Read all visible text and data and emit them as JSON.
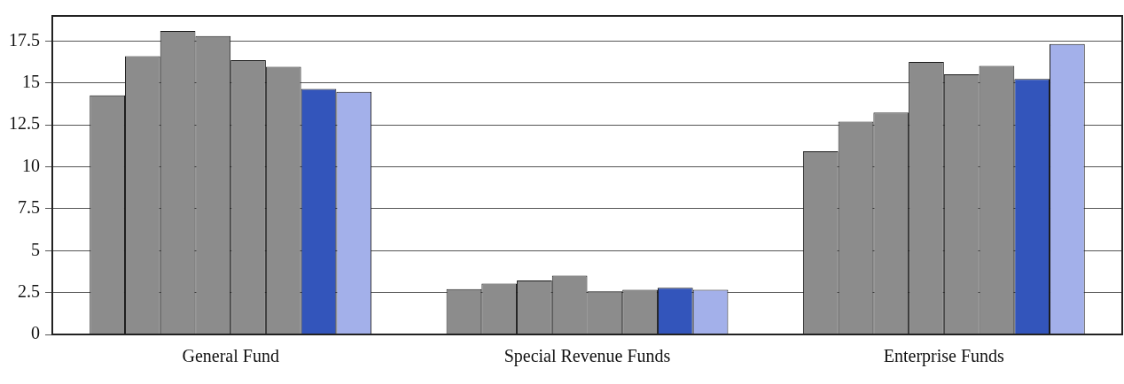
{
  "chart_data": {
    "type": "bar",
    "categories": [
      "General Fund",
      "Special Revenue Funds",
      "Enterprise Funds"
    ],
    "series": [
      {
        "color": "#8c8c8c",
        "values": [
          14.26,
          2.71,
          10.92
        ]
      },
      {
        "color": "#8c8c8c",
        "values": [
          16.6,
          3.03,
          12.69
        ]
      },
      {
        "color": "#8c8c8c",
        "values": [
          18.1,
          3.22,
          13.24
        ]
      },
      {
        "color": "#8c8c8c",
        "values": [
          17.8,
          3.51,
          16.26
        ]
      },
      {
        "color": "#8c8c8c",
        "values": [
          16.36,
          2.57,
          15.52
        ]
      },
      {
        "color": "#8c8c8c",
        "values": [
          15.97,
          2.66,
          16.02
        ]
      },
      {
        "color": "#3355bb",
        "values": [
          14.65,
          2.78,
          15.24
        ]
      },
      {
        "color": "#a3b0ea",
        "values": [
          14.47,
          2.66,
          17.33
        ]
      }
    ],
    "ylim": [
      0,
      19
    ],
    "yticks": [
      0,
      2.5,
      5,
      7.5,
      10,
      12.5,
      15,
      17.5
    ],
    "grid": "y",
    "legend": false
  }
}
